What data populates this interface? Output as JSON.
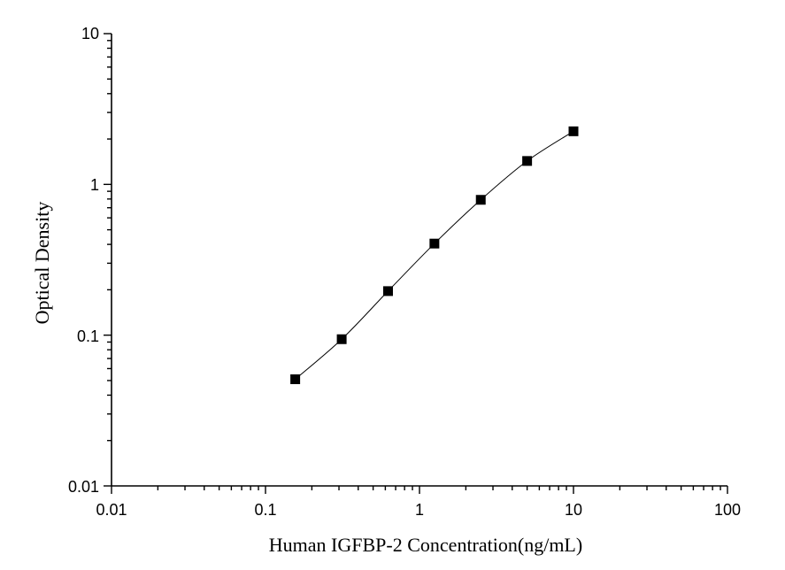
{
  "chart_data": {
    "type": "scatter",
    "x_scale": "log",
    "y_scale": "log",
    "xlabel": "Human IGFBP-2 Concentration(ng/mL)",
    "ylabel": "Optical Density",
    "xlim": [
      0.01,
      100
    ],
    "ylim": [
      0.01,
      10
    ],
    "x_ticks": [
      "0.01",
      "0.1",
      "1",
      "10",
      "100"
    ],
    "y_ticks": [
      "0.01",
      "0.1",
      "1",
      "10"
    ],
    "grid": false,
    "series": [
      {
        "x": [
          0.156,
          0.3125,
          0.625,
          1.25,
          2.5,
          5,
          10
        ],
        "y": [
          0.051,
          0.094,
          0.196,
          0.405,
          0.79,
          1.43,
          2.25
        ],
        "marker": "square",
        "fit_curve": true
      }
    ]
  }
}
